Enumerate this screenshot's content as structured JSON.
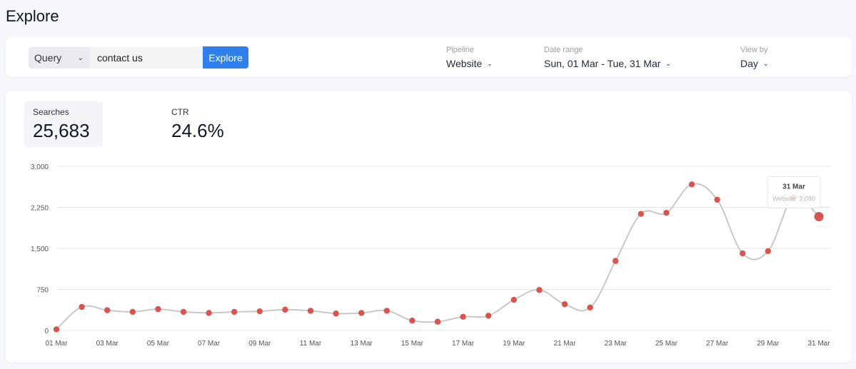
{
  "page": {
    "title": "Explore"
  },
  "filters": {
    "query_type": "Query",
    "query_value": "contact us",
    "explore_label": "Explore",
    "pipeline": {
      "label": "Pipeline",
      "value": "Website"
    },
    "date_range": {
      "label": "Date range",
      "value": "Sun, 01 Mar - Tue, 31 Mar"
    },
    "view_by": {
      "label": "View by",
      "value": "Day"
    }
  },
  "metrics": {
    "searches": {
      "label": "Searches",
      "value": "25,683"
    },
    "ctr": {
      "label": "CTR",
      "value": "24.6%"
    }
  },
  "tooltip": {
    "title": "31 Mar",
    "text": "Website: 2,080"
  },
  "colors": {
    "accent": "#2f80ed",
    "point": "#d9534f",
    "line": "#c8c8c8"
  },
  "chart_data": {
    "type": "line",
    "x": [
      "01 Mar",
      "02 Mar",
      "03 Mar",
      "04 Mar",
      "05 Mar",
      "06 Mar",
      "07 Mar",
      "08 Mar",
      "09 Mar",
      "10 Mar",
      "11 Mar",
      "12 Mar",
      "13 Mar",
      "14 Mar",
      "15 Mar",
      "16 Mar",
      "17 Mar",
      "18 Mar",
      "19 Mar",
      "20 Mar",
      "21 Mar",
      "22 Mar",
      "23 Mar",
      "24 Mar",
      "25 Mar",
      "26 Mar",
      "27 Mar",
      "28 Mar",
      "29 Mar",
      "30 Mar",
      "31 Mar"
    ],
    "x_tick_labels": [
      "01 Mar",
      "03 Mar",
      "05 Mar",
      "07 Mar",
      "09 Mar",
      "11 Mar",
      "13 Mar",
      "15 Mar",
      "17 Mar",
      "19 Mar",
      "21 Mar",
      "23 Mar",
      "25 Mar",
      "27 Mar",
      "29 Mar",
      "31 Mar"
    ],
    "series": [
      {
        "name": "Website",
        "values": [
          20,
          430,
          370,
          340,
          390,
          340,
          320,
          340,
          350,
          380,
          360,
          310,
          320,
          360,
          180,
          160,
          250,
          270,
          560,
          740,
          480,
          420,
          1270,
          2130,
          2150,
          2670,
          2390,
          1410,
          1450,
          2430,
          2080
        ]
      }
    ],
    "y_ticks": [
      0,
      750,
      1500,
      2250,
      3000
    ],
    "y_tick_labels": [
      "0",
      "750",
      "1,500",
      "2,250",
      "3,000"
    ],
    "ylim": [
      0,
      3000
    ],
    "grid": true,
    "highlighted_index": 30
  }
}
